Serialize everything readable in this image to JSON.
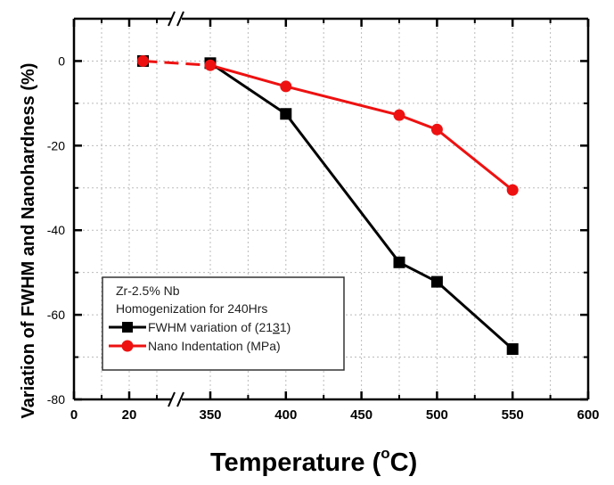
{
  "chart_data": {
    "type": "line",
    "title": "",
    "xlabel": "Temperature (",
    "xlabel_unit_degree": "o",
    "xlabel_unit": "C)",
    "ylabel": "Variation of FWHM and Nanohardness (%)",
    "xlim": [
      0,
      600
    ],
    "x_axis_break": "20-350",
    "ylim": [
      -80,
      10
    ],
    "grid": true,
    "x_ticks": [
      0,
      20,
      350,
      400,
      450,
      500,
      550,
      600
    ],
    "x_tick_labels": [
      "0",
      "20",
      "350",
      "400",
      "450",
      "500",
      "550",
      "600"
    ],
    "y_ticks": [
      0,
      -20,
      -40,
      -60,
      -80
    ],
    "y_tick_labels": [
      "0",
      "-20",
      "-40",
      "-60",
      "-80"
    ],
    "legend_position": "bottom-left",
    "legend_header": [
      "Zr-2.5% Nb",
      "Homogenization for 240Hrs"
    ],
    "series": [
      {
        "name": "FWHM variation of (21",
        "name_underlined": "3",
        "name_suffix": "1)",
        "color": "#000000",
        "marker": "square",
        "x": [
          25,
          350,
          400,
          475,
          500,
          550
        ],
        "y": [
          0,
          -0.5,
          -12.5,
          -47.6,
          -52.2,
          -68.1
        ]
      },
      {
        "name": "Nano Indentation (MPa)",
        "color": "#ee1111",
        "marker": "circle",
        "x": [
          25,
          350,
          400,
          475,
          500,
          550
        ],
        "y": [
          0,
          -1,
          -6,
          -12.8,
          -16.2,
          -30.5
        ]
      }
    ],
    "axis_break_symbol": "//"
  }
}
